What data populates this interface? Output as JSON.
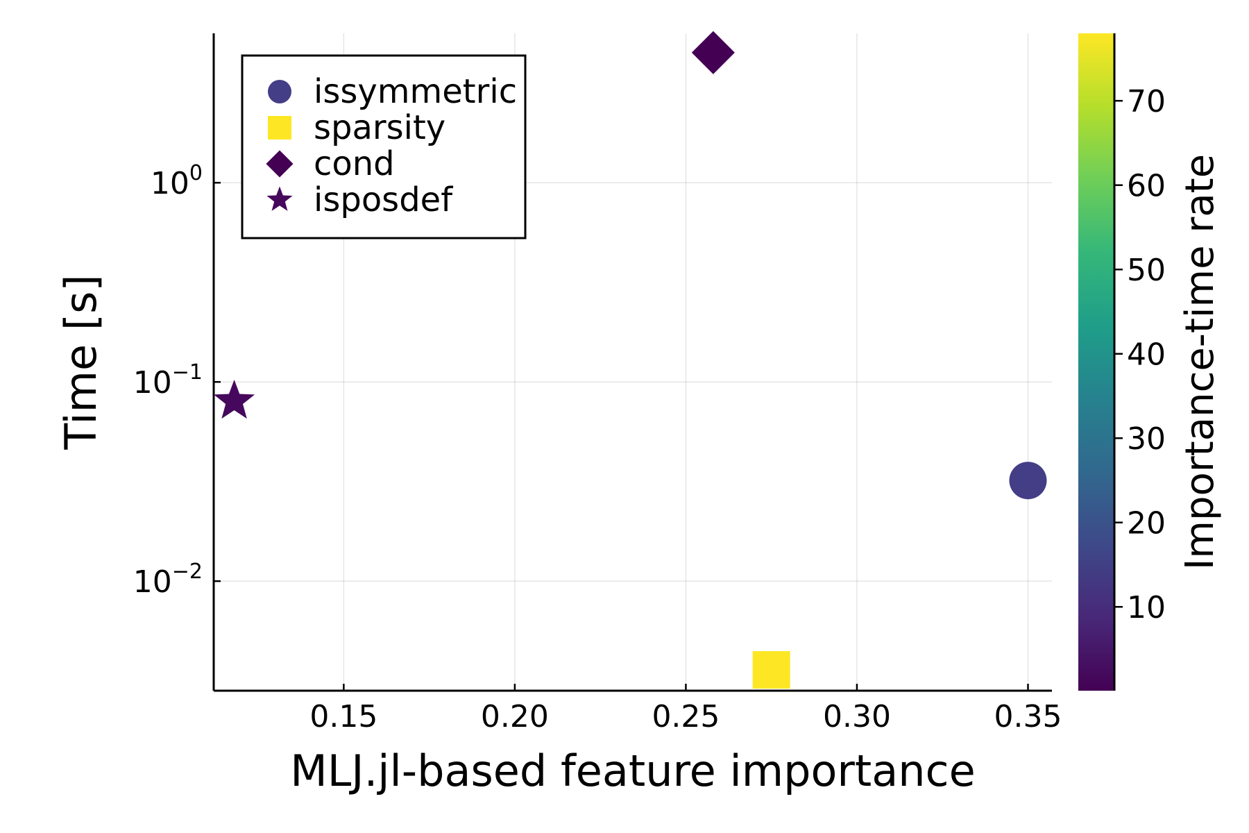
{
  "chart_data": {
    "type": "scatter",
    "xlabel": "MLJ.jl-based feature importance",
    "ylabel": "Time [s]",
    "yscale": "log10",
    "xlim": [
      0.112,
      0.357
    ],
    "ylim_log10": [
      -2.55,
      0.75
    ],
    "xticks": [
      0.15,
      0.2,
      0.25,
      0.3,
      0.35
    ],
    "xtick_labels": [
      "0.15",
      "0.20",
      "0.25",
      "0.30",
      "0.35"
    ],
    "yticks": [
      {
        "base": "10",
        "exp": "0",
        "value": 1
      },
      {
        "base": "10",
        "exp": "−1",
        "value": 0.1
      },
      {
        "base": "10",
        "exp": "−2",
        "value": 0.01
      }
    ],
    "grid": true,
    "legend_position": "top-left",
    "series": [
      {
        "name": "issymmetric",
        "marker": "circle",
        "x": 0.35,
        "y": 0.032,
        "rate": 10.9,
        "color": "#433e85"
      },
      {
        "name": "sparsity",
        "marker": "square",
        "x": 0.275,
        "y": 0.0035,
        "rate": 78.0,
        "color": "#fde725"
      },
      {
        "name": "cond",
        "marker": "diamond",
        "x": 0.258,
        "y": 4.5,
        "rate": 0.06,
        "color": "#440154"
      },
      {
        "name": "isposdef",
        "marker": "star",
        "x": 0.118,
        "y": 0.08,
        "rate": 1.5,
        "color": "#46085c"
      }
    ],
    "colorbar": {
      "title": "Importance-time rate",
      "range": [
        0.06,
        78.0
      ],
      "ticks": [
        10,
        20,
        30,
        40,
        50,
        60,
        70
      ],
      "tick_labels": [
        "10",
        "20",
        "30",
        "40",
        "50",
        "60",
        "70"
      ],
      "colormap": "viridis",
      "colormap_stops": [
        "#440154",
        "#482878",
        "#3e4989",
        "#31688e",
        "#26828e",
        "#1f9e89",
        "#35b779",
        "#6ece58",
        "#b5de2b",
        "#fde725"
      ]
    }
  }
}
